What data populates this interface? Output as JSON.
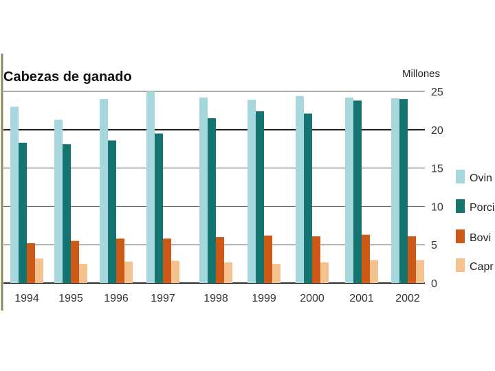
{
  "chart_data": {
    "type": "bar",
    "title": "Cabezas de ganado",
    "units": "Millones",
    "categories": [
      "1994",
      "1995",
      "1996",
      "1997",
      "1998",
      "1999",
      "2000",
      "2001",
      "2002"
    ],
    "series": [
      {
        "name": "Ovino",
        "color": "#a6d7dc",
        "values": [
          23.0,
          21.3,
          24.0,
          25.0,
          24.2,
          23.9,
          24.4,
          24.2,
          24.1
        ]
      },
      {
        "name": "Porcino",
        "color": "#137470",
        "values": [
          18.3,
          18.1,
          18.6,
          19.5,
          21.5,
          22.4,
          22.1,
          23.8,
          24.0
        ]
      },
      {
        "name": "Bovino",
        "color": "#cc5a16",
        "values": [
          5.2,
          5.5,
          5.8,
          5.8,
          6.0,
          6.2,
          6.1,
          6.3,
          6.1
        ]
      },
      {
        "name": "Caprino",
        "color": "#f4c28e",
        "values": [
          3.2,
          2.5,
          2.8,
          2.9,
          2.7,
          2.5,
          2.7,
          3.0,
          3.0
        ]
      }
    ],
    "ylim": [
      0,
      25
    ],
    "yticks": [
      0,
      5,
      10,
      15,
      20,
      25
    ],
    "ytick_labels": [
      "0",
      "5",
      "10",
      "15",
      "20",
      "25"
    ],
    "xlabel": "",
    "ylabel": "",
    "legend_labels": [
      "Ovin",
      "Porci",
      "Bovi",
      "Capr"
    ],
    "legend_position": "right",
    "grid": true
  }
}
